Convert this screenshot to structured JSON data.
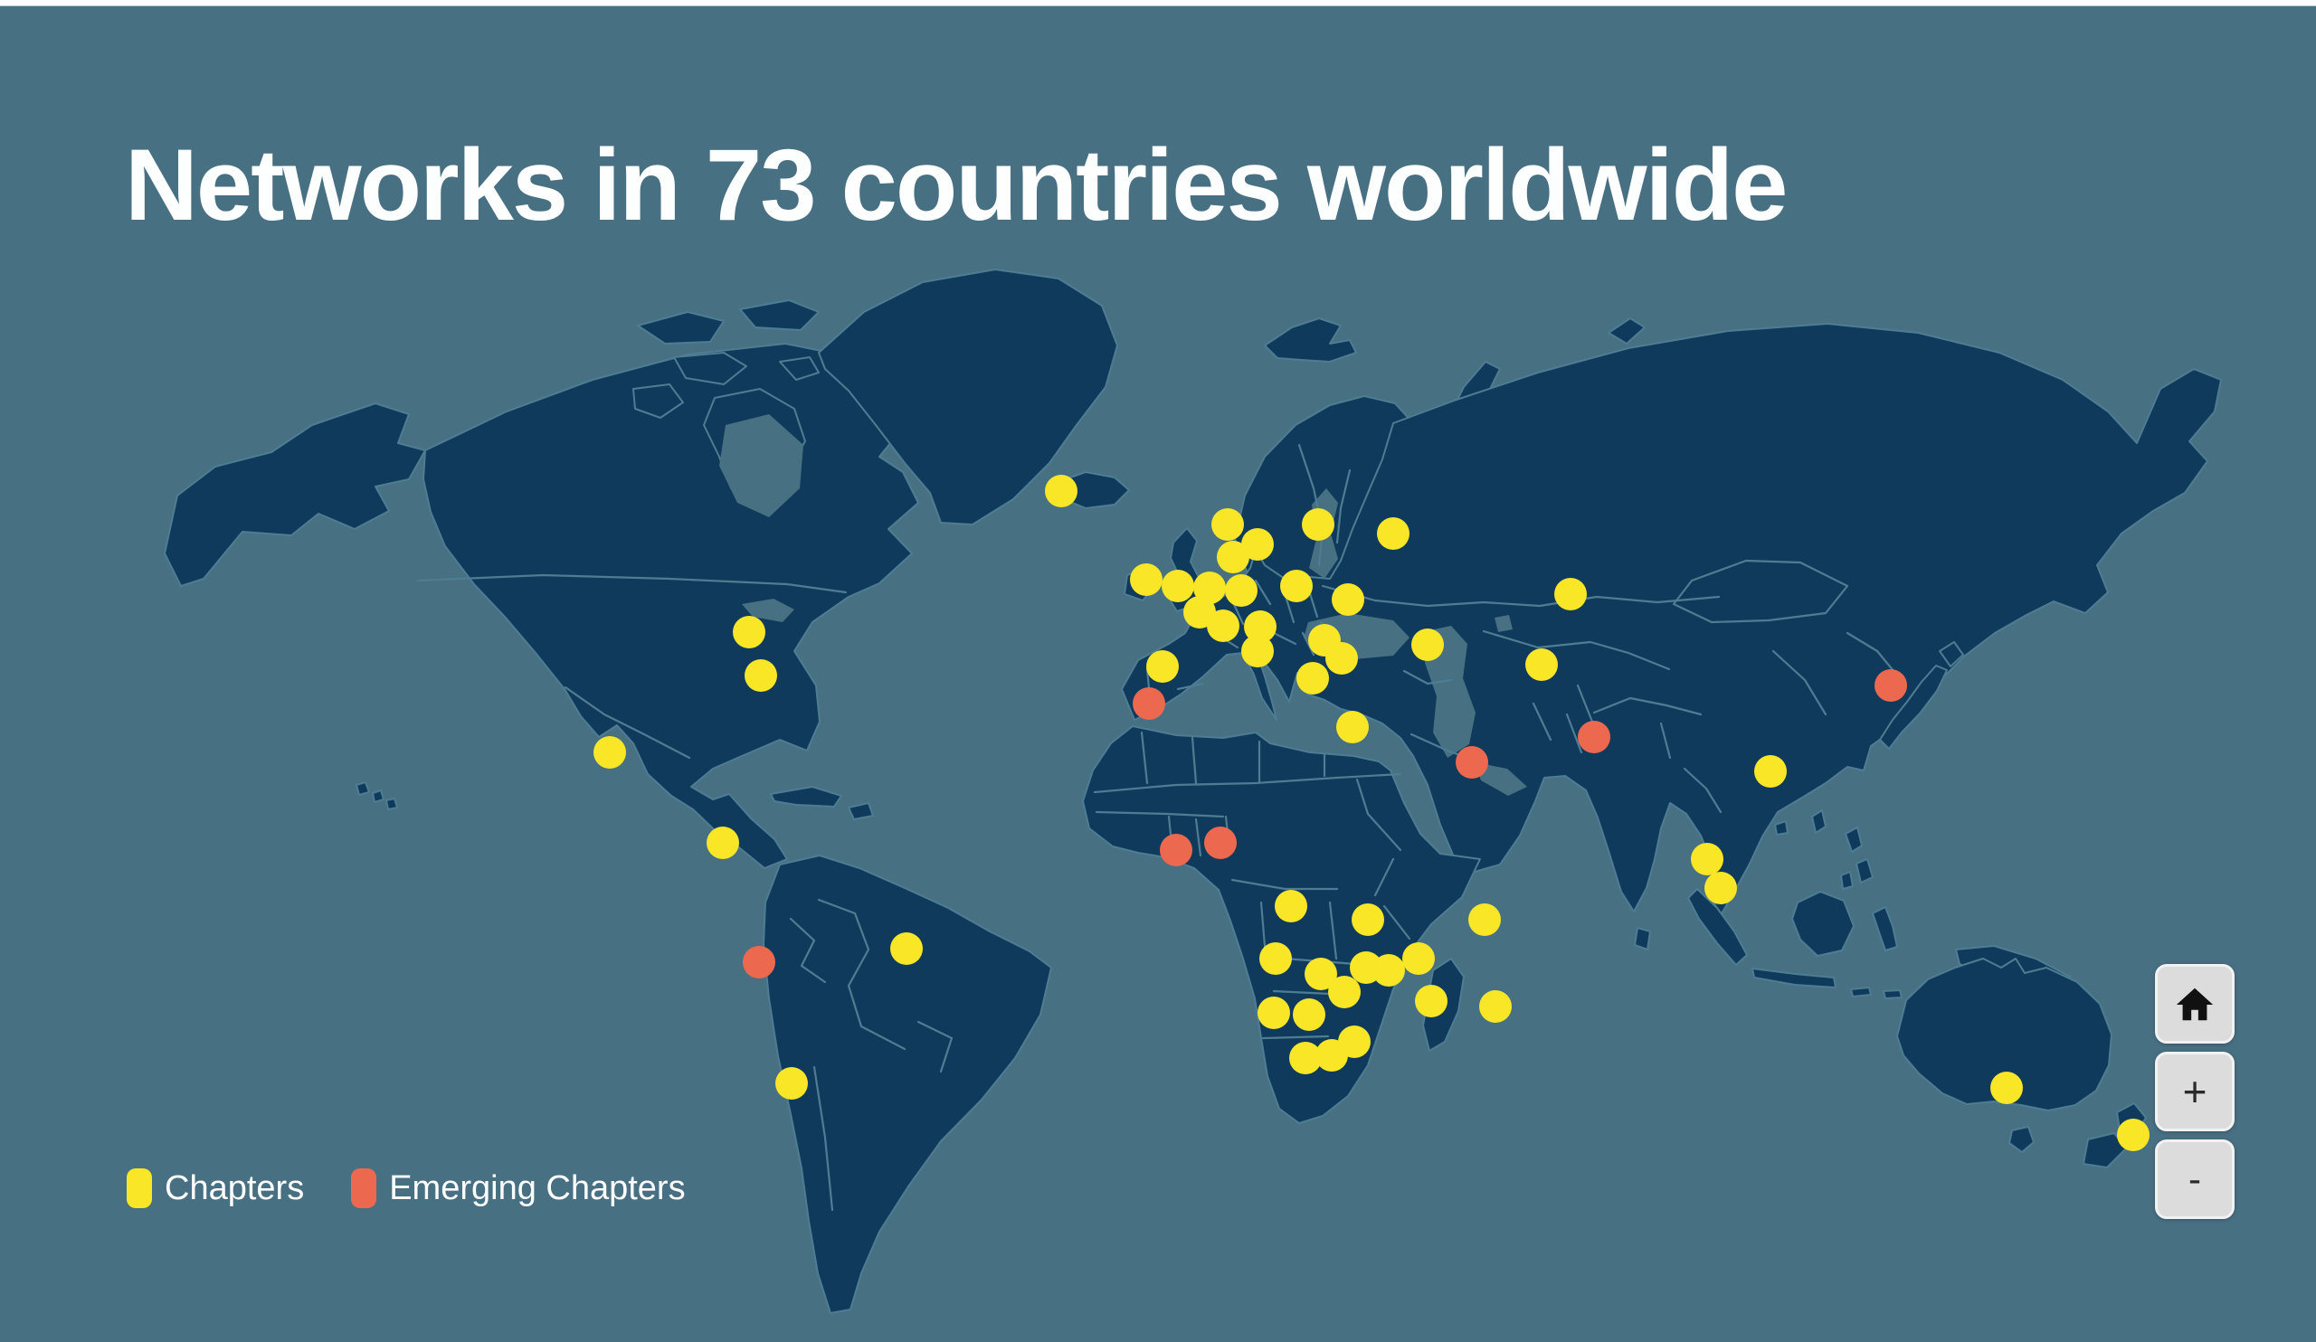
{
  "title": "Networks in 73 countries worldwide",
  "legend": {
    "chapters_label": "Chapters",
    "emerging_label": "Emerging Chapters"
  },
  "map_controls": {
    "home_icon": "home-icon",
    "zoom_in_label": "+",
    "zoom_out_label": "-"
  },
  "colors": {
    "background": "#487083",
    "land": "#103a5c",
    "country_border": "#4e7d93",
    "chapter": "#f8e627",
    "emerging": "#ec6950",
    "title_text": "#fdfefe",
    "button_bg": "#dcdcdc"
  },
  "map_markers": {
    "radius": 18,
    "chapters": [
      [
        1173,
        543
      ],
      [
        1357,
        580
      ],
      [
        1390,
        602
      ],
      [
        1363,
        616
      ],
      [
        1457,
        580
      ],
      [
        1540,
        590
      ],
      [
        1267,
        641
      ],
      [
        1302,
        648
      ],
      [
        1337,
        650
      ],
      [
        1372,
        653
      ],
      [
        1433,
        648
      ],
      [
        1490,
        663
      ],
      [
        1326,
        677
      ],
      [
        1352,
        692
      ],
      [
        1393,
        693
      ],
      [
        1390,
        720
      ],
      [
        1464,
        708
      ],
      [
        1483,
        728
      ],
      [
        1285,
        737
      ],
      [
        1451,
        750
      ],
      [
        1495,
        804
      ],
      [
        1578,
        713
      ],
      [
        1736,
        657
      ],
      [
        1704,
        735
      ],
      [
        1957,
        853
      ],
      [
        1887,
        950
      ],
      [
        1902,
        982
      ],
      [
        828,
        699
      ],
      [
        841,
        747
      ],
      [
        674,
        832
      ],
      [
        799,
        932
      ],
      [
        1002,
        1049
      ],
      [
        875,
        1198
      ],
      [
        1427,
        1002
      ],
      [
        1512,
        1017
      ],
      [
        1641,
        1017
      ],
      [
        1410,
        1060
      ],
      [
        1460,
        1077
      ],
      [
        1486,
        1097
      ],
      [
        1510,
        1070
      ],
      [
        1535,
        1073
      ],
      [
        1568,
        1060
      ],
      [
        1582,
        1107
      ],
      [
        1653,
        1113
      ],
      [
        1408,
        1120
      ],
      [
        1447,
        1122
      ],
      [
        1443,
        1170
      ],
      [
        1472,
        1167
      ],
      [
        1497,
        1152
      ],
      [
        2218,
        1203
      ],
      [
        2358,
        1255
      ]
    ],
    "emerging_chapters": [
      [
        1270,
        778
      ],
      [
        1300,
        940
      ],
      [
        1349,
        932
      ],
      [
        839,
        1064
      ],
      [
        1627,
        843
      ],
      [
        1762,
        815
      ],
      [
        2090,
        758
      ]
    ]
  }
}
